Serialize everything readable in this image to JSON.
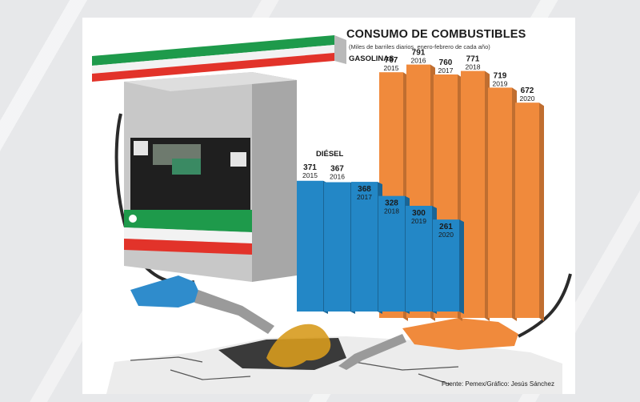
{
  "chart_data": {
    "type": "bar",
    "title": "CONSUMO DE COMBUSTIBLES",
    "subtitle": "(Miles de barriles diarios, enero-febrero de cada año)",
    "categories": [
      "2015",
      "2016",
      "2017",
      "2018",
      "2019",
      "2020"
    ],
    "series": [
      {
        "name": "GASOLINAS",
        "values": [
          767,
          791,
          760,
          771,
          719,
          672
        ]
      },
      {
        "name": "DIÉSEL",
        "values": [
          371,
          367,
          368,
          328,
          300,
          261
        ]
      }
    ],
    "colors": {
      "GASOLINAS": "#f08a3c",
      "DIÉSEL": "#2387c6"
    },
    "grid": false,
    "legend": "labels-on-bars"
  },
  "source": "Fuente: Pemex/Gráfico: Jesús Sánchez",
  "illustration": {
    "pump_logo_icon": "pump-logo-icon",
    "pump_colors": [
      "#1e9a4b",
      "#ffffff",
      "#e2332a"
    ]
  }
}
